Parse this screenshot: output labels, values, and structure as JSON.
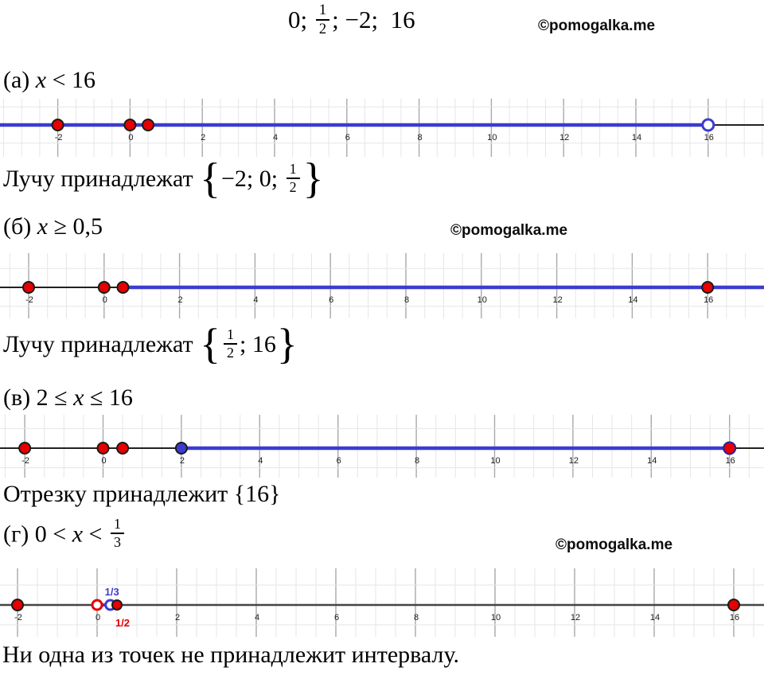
{
  "colors": {
    "blue": "#3c3ccf",
    "red": "#e60000",
    "axis_black": "#222222",
    "axis_gray": "#444444",
    "grid_minor": "#e6e6e6",
    "grid_major": "#a9a9a9",
    "tick_text": "#1b1b1b"
  },
  "watermarks": [
    {
      "text": "©pomogalka.me"
    },
    {
      "text": "©pomogalka.me"
    },
    {
      "text": "©pomogalka.me"
    }
  ],
  "title": {
    "parts": [
      {
        "t": "0; "
      },
      {
        "frac": [
          "1",
          "2"
        ]
      },
      {
        "t": "; −2;  16"
      }
    ]
  },
  "sections": {
    "a": {
      "heading": {
        "parts": [
          {
            "t": "(а) "
          },
          {
            "t": "x",
            "i": true
          },
          {
            "t": " < 16"
          }
        ]
      },
      "result": {
        "parts": [
          {
            "t": "Лучу принадлежат "
          },
          {
            "brace": "{"
          },
          {
            "t": "−2; 0; "
          },
          {
            "frac": [
              "1",
              "2"
            ]
          },
          {
            "brace": "}"
          }
        ]
      }
    },
    "b": {
      "heading": {
        "parts": [
          {
            "t": "(б) "
          },
          {
            "t": "x",
            "i": true
          },
          {
            "t": " ≥ 0,5"
          }
        ]
      },
      "result": {
        "parts": [
          {
            "t": "Лучу принадлежат "
          },
          {
            "brace": "{"
          },
          {
            "frac": [
              "1",
              "2"
            ]
          },
          {
            "t": "; 16"
          },
          {
            "brace": "}"
          }
        ]
      }
    },
    "c": {
      "heading": {
        "parts": [
          {
            "t": "(в) 2 ≤ "
          },
          {
            "t": "x",
            "i": true
          },
          {
            "t": " ≤ 16"
          }
        ]
      },
      "result": {
        "parts": [
          {
            "t": "Отрезку принадлежит {16}"
          }
        ]
      }
    },
    "d": {
      "heading": {
        "parts": [
          {
            "t": "(г) 0 < "
          },
          {
            "t": "x",
            "i": true
          },
          {
            "t": " < "
          },
          {
            "frac": [
              "1",
              "3"
            ]
          }
        ]
      }
    }
  },
  "footer": {
    "text": "Ни одна из точек не принадлежит интервалу."
  },
  "numberlines": [
    {
      "id": "a",
      "inequality": "x < 16",
      "ticks": [
        [
          -2,
          "-2"
        ],
        [
          0,
          "0"
        ],
        [
          2,
          "2"
        ],
        [
          4,
          "4"
        ],
        [
          6,
          "6"
        ],
        [
          8,
          "8"
        ],
        [
          10,
          "10"
        ],
        [
          12,
          "12"
        ],
        [
          14,
          "14"
        ],
        [
          16,
          "16"
        ]
      ],
      "segments": [
        {
          "from": "edge-left",
          "to": 16,
          "color": "#3c3ccf",
          "width": 4.5
        },
        {
          "from": 16,
          "to": "edge-right",
          "color": "#222222",
          "width": 2
        }
      ],
      "points": [
        {
          "v": -2,
          "type": "closed",
          "fill": "#e60000",
          "stroke": "#1a1a1a",
          "r": 7
        },
        {
          "v": 0,
          "type": "closed",
          "fill": "#e60000",
          "stroke": "#1a1a1a",
          "r": 7
        },
        {
          "v": 0.5,
          "type": "closed",
          "fill": "#e60000",
          "stroke": "#1a1a1a",
          "r": 7
        },
        {
          "v": 16,
          "type": "open",
          "stroke": "#3c3ccf",
          "r": 7
        }
      ],
      "extra_labels": []
    },
    {
      "id": "b",
      "inequality": "x ≥ 0,5",
      "ticks": [
        [
          -2,
          "-2"
        ],
        [
          0,
          "0"
        ],
        [
          2,
          "2"
        ],
        [
          4,
          "4"
        ],
        [
          6,
          "6"
        ],
        [
          8,
          "8"
        ],
        [
          10,
          "10"
        ],
        [
          12,
          "12"
        ],
        [
          14,
          "14"
        ],
        [
          16,
          "16"
        ]
      ],
      "segments": [
        {
          "from": "edge-left",
          "to": 0.5,
          "color": "#222222",
          "width": 2
        },
        {
          "from": 0.5,
          "to": "edge-right",
          "color": "#3c3ccf",
          "width": 4.5
        }
      ],
      "points": [
        {
          "v": -2,
          "type": "closed",
          "fill": "#e60000",
          "stroke": "#1a1a1a",
          "r": 7
        },
        {
          "v": 0,
          "type": "closed",
          "fill": "#e60000",
          "stroke": "#1a1a1a",
          "r": 7
        },
        {
          "v": 0.5,
          "type": "closed",
          "fill": "#e60000",
          "stroke": "#1a1a1a",
          "r": 7
        },
        {
          "v": 16,
          "type": "closed",
          "fill": "#e60000",
          "stroke": "#1a1a1a",
          "r": 7
        }
      ],
      "extra_labels": []
    },
    {
      "id": "c",
      "inequality": "2 ≤ x ≤ 16",
      "ticks": [
        [
          -2,
          "-2"
        ],
        [
          0,
          "0"
        ],
        [
          2,
          "2"
        ],
        [
          4,
          "4"
        ],
        [
          6,
          "6"
        ],
        [
          8,
          "8"
        ],
        [
          10,
          "10"
        ],
        [
          12,
          "12"
        ],
        [
          14,
          "14"
        ],
        [
          16,
          "16"
        ]
      ],
      "segments": [
        {
          "from": "edge-left",
          "to": 2,
          "color": "#222222",
          "width": 2
        },
        {
          "from": 2,
          "to": 16,
          "color": "#3c3ccf",
          "width": 4.5
        },
        {
          "from": 16,
          "to": "edge-right",
          "color": "#222222",
          "width": 2
        }
      ],
      "points": [
        {
          "v": -2,
          "type": "closed",
          "fill": "#e60000",
          "stroke": "#1a1a1a",
          "r": 7
        },
        {
          "v": 0,
          "type": "closed",
          "fill": "#e60000",
          "stroke": "#1a1a1a",
          "r": 7
        },
        {
          "v": 0.5,
          "type": "closed",
          "fill": "#e60000",
          "stroke": "#1a1a1a",
          "r": 7
        },
        {
          "v": 2,
          "type": "closed",
          "fill": "#3c3ccf",
          "stroke": "#1a1a1a",
          "r": 7
        },
        {
          "v": 16,
          "type": "closed",
          "fill": "#e60000",
          "stroke": "#24249e",
          "r": 7.5
        }
      ],
      "extra_labels": []
    },
    {
      "id": "d",
      "inequality": "0 < x < 1/3",
      "ticks": [
        [
          -2,
          "-2"
        ],
        [
          0,
          "0"
        ],
        [
          2,
          "2"
        ],
        [
          4,
          "4"
        ],
        [
          6,
          "6"
        ],
        [
          8,
          "8"
        ],
        [
          10,
          "10"
        ],
        [
          12,
          "12"
        ],
        [
          14,
          "14"
        ],
        [
          16,
          "16"
        ]
      ],
      "segments": [
        {
          "from": "edge-left",
          "to": "edge-right",
          "color": "#444444",
          "width": 2.5
        },
        {
          "from": 0,
          "to": 0.3333,
          "color": "#3c3ccf",
          "width": 4
        }
      ],
      "points": [
        {
          "v": -2,
          "type": "closed",
          "fill": "#e60000",
          "stroke": "#1a1a1a",
          "r": 7
        },
        {
          "v": 0,
          "type": "open",
          "stroke": "#e60000",
          "r": 6
        },
        {
          "v": 0.3333,
          "type": "open",
          "stroke": "#3c3ccf",
          "r": 6
        },
        {
          "v": 0.5,
          "type": "closed",
          "fill": "#e60000",
          "stroke": "#1a1a1a",
          "r": 6
        },
        {
          "v": 16,
          "type": "closed",
          "fill": "#e60000",
          "stroke": "#1a1a1a",
          "r": 7
        }
      ],
      "extra_labels": [
        {
          "v": 0.3333,
          "text": "1/3",
          "color": "#3c3ccf",
          "position": "above"
        },
        {
          "v": 0.5,
          "text": "1/2",
          "color": "#e60000",
          "position": "below"
        }
      ]
    }
  ]
}
